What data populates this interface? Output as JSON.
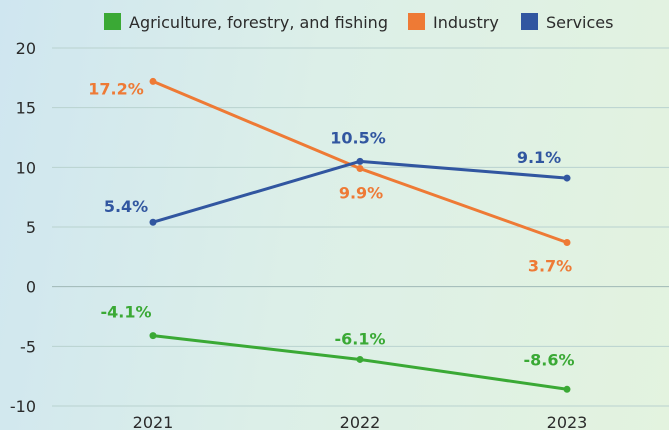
{
  "chart_data": {
    "type": "line",
    "categories": [
      "2021",
      "2022",
      "2023"
    ],
    "ylim": [
      -10,
      20
    ],
    "yticks": [
      -10,
      -5,
      0,
      5,
      10,
      15,
      20
    ],
    "grid": true,
    "legend_position": "top",
    "series": [
      {
        "name": "Agriculture, forestry, and fishing",
        "color": "#3aa935",
        "values": [
          -4.1,
          -6.1,
          -8.6
        ],
        "labels": [
          "-4.1%",
          "-6.1%",
          "-8.6%"
        ]
      },
      {
        "name": "Industry",
        "color": "#ee7a35",
        "values": [
          17.2,
          9.9,
          3.7
        ],
        "labels": [
          "17.2%",
          "9.9%",
          "3.7%"
        ]
      },
      {
        "name": "Services",
        "color": "#3156a0",
        "values": [
          5.4,
          10.5,
          9.1
        ],
        "labels": [
          "5.4%",
          "10.5%",
          "9.1%"
        ]
      }
    ]
  }
}
